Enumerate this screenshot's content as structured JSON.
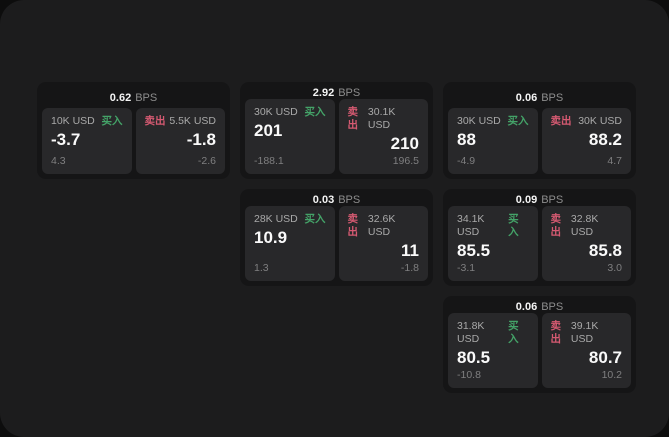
{
  "labels": {
    "bps_unit": "BPS",
    "buy": "买入",
    "sell": "卖出"
  },
  "colors": {
    "buy_green": "#44a368",
    "sell_red": "#d65a72",
    "screen_bg": "#1c1c1d",
    "card_bg": "#151516",
    "panel_bg": "#28282a"
  },
  "cards": [
    {
      "bps": "0.62",
      "buy": {
        "size": "10K USD",
        "price": "-3.7",
        "delta": "4.3"
      },
      "sell": {
        "size": "5.5K USD",
        "price": "-1.8",
        "delta": "-2.6"
      }
    },
    {
      "bps": "2.92",
      "buy": {
        "size": "30K USD",
        "price": "201",
        "delta": "-188.1"
      },
      "sell": {
        "size": "30.1K USD",
        "price": "210",
        "delta": "196.5"
      }
    },
    {
      "bps": "0.06",
      "buy": {
        "size": "30K USD",
        "price": "88",
        "delta": "-4.9"
      },
      "sell": {
        "size": "30K USD",
        "price": "88.2",
        "delta": "4.7"
      }
    },
    {
      "bps": "0.03",
      "buy": {
        "size": "28K USD",
        "price": "10.9",
        "delta": "1.3"
      },
      "sell": {
        "size": "32.6K USD",
        "price": "11",
        "delta": "-1.8"
      }
    },
    {
      "bps": "0.09",
      "buy": {
        "size": "34.1K USD",
        "price": "85.5",
        "delta": "-3.1"
      },
      "sell": {
        "size": "32.8K USD",
        "price": "85.8",
        "delta": "3.0"
      }
    },
    {
      "bps": "0.06",
      "buy": {
        "size": "31.8K USD",
        "price": "80.5",
        "delta": "-10.8"
      },
      "sell": {
        "size": "39.1K USD",
        "price": "80.7",
        "delta": "10.2"
      }
    }
  ]
}
